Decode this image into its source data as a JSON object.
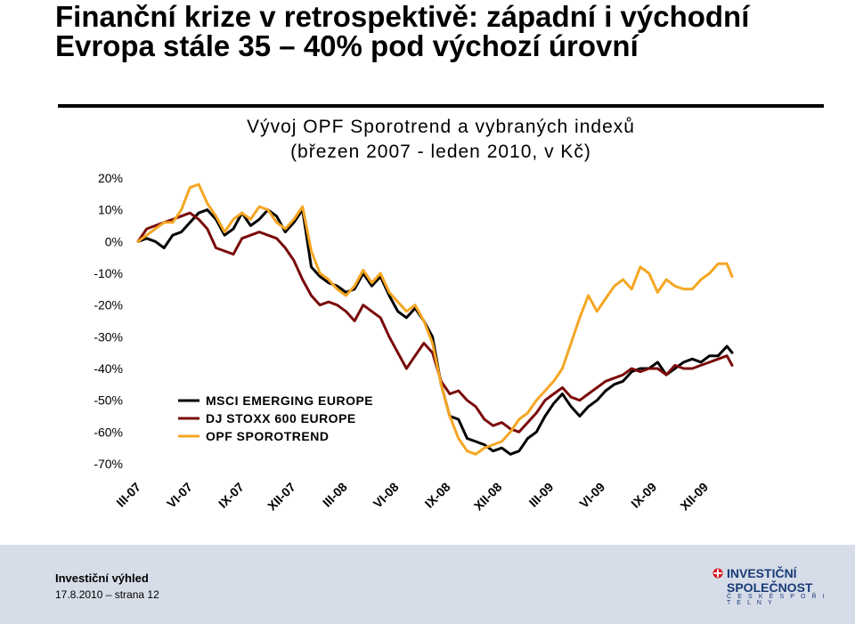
{
  "slide": {
    "title": "Finanční krize v retrospektivě: západní i východní Evropa stále 35 – 40% pod výchozí úrovní"
  },
  "chart_data": {
    "type": "line",
    "title": "Vývoj OPF Sporotrend a vybraných indexů",
    "subtitle": "(březen 2007 - leden 2010, v Kč)",
    "xlabel": "",
    "ylabel": "",
    "ylim": [
      -70,
      20
    ],
    "ytick_labels": [
      "20%",
      "10%",
      "0%",
      "-10%",
      "-20%",
      "-30%",
      "-40%",
      "-50%",
      "-60%",
      "-70%"
    ],
    "ytick_values": [
      20,
      10,
      0,
      -10,
      -20,
      -30,
      -40,
      -50,
      -60,
      -70
    ],
    "xtick_labels": [
      "III-07",
      "VI-07",
      "IX-07",
      "XII-07",
      "III-08",
      "VI-08",
      "IX-08",
      "XII-08",
      "III-09",
      "VI-09",
      "IX-09",
      "XII-09"
    ],
    "xlim": [
      0,
      34.3
    ],
    "grid": false,
    "legend_placement": "bottom-left",
    "series": [
      {
        "name": "MSCI EMERGING EUROPE",
        "color": "#000000",
        "x": [
          0,
          0.5,
          1,
          1.5,
          2,
          2.5,
          3,
          3.5,
          4,
          4.5,
          5,
          5.5,
          6,
          6.5,
          7,
          7.5,
          8,
          8.5,
          9,
          9.5,
          10,
          10.5,
          11,
          11.5,
          12,
          12.5,
          13,
          13.5,
          14,
          14.5,
          15,
          15.5,
          16,
          16.5,
          17,
          17.5,
          18,
          18.5,
          19,
          19.5,
          20,
          20.5,
          21,
          21.5,
          22,
          22.5,
          23,
          23.5,
          24,
          24.5,
          25,
          25.5,
          26,
          26.5,
          27,
          27.5,
          28,
          28.5,
          29,
          29.5,
          30,
          30.5,
          31,
          31.5,
          32,
          32.5,
          33,
          33.5,
          34,
          34.3
        ],
        "values": [
          0,
          1,
          0,
          -2,
          2,
          3,
          6,
          9,
          10,
          7,
          2,
          4,
          9,
          5,
          7,
          10,
          8,
          3,
          6,
          10,
          -8,
          -11,
          -13,
          -14,
          -16,
          -15,
          -10,
          -14,
          -11,
          -17,
          -22,
          -24,
          -21,
          -25,
          -30,
          -45,
          -55,
          -56,
          -62,
          -63,
          -64,
          -66,
          -65,
          -67,
          -66,
          -62,
          -60,
          -55,
          -51,
          -48,
          -52,
          -55,
          -52,
          -50,
          -47,
          -45,
          -44,
          -41,
          -40,
          -40,
          -38,
          -42,
          -40,
          -38,
          -37,
          -38,
          -36,
          -36,
          -33,
          -35
        ]
      },
      {
        "name": "DJ STOXX 600 EUROPE",
        "color": "#7a0a0a",
        "x": [
          0,
          0.5,
          1,
          1.5,
          2,
          2.5,
          3,
          3.5,
          4,
          4.5,
          5,
          5.5,
          6,
          6.5,
          7,
          7.5,
          8,
          8.5,
          9,
          9.5,
          10,
          10.5,
          11,
          11.5,
          12,
          12.5,
          13,
          13.5,
          14,
          14.5,
          15,
          15.5,
          16,
          16.5,
          17,
          17.5,
          18,
          18.5,
          19,
          19.5,
          20,
          20.5,
          21,
          21.5,
          22,
          22.5,
          23,
          23.5,
          24,
          24.5,
          25,
          25.5,
          26,
          26.5,
          27,
          27.5,
          28,
          28.5,
          29,
          29.5,
          30,
          30.5,
          31,
          31.5,
          32,
          32.5,
          33,
          33.5,
          34,
          34.3
        ],
        "values": [
          0,
          4,
          5,
          6,
          7,
          8,
          9,
          7,
          4,
          -2,
          -3,
          -4,
          1,
          2,
          3,
          2,
          1,
          -2,
          -6,
          -12,
          -17,
          -20,
          -19,
          -20,
          -22,
          -25,
          -20,
          -22,
          -24,
          -30,
          -35,
          -40,
          -36,
          -32,
          -35,
          -44,
          -48,
          -47,
          -50,
          -52,
          -56,
          -58,
          -57,
          -59,
          -60,
          -57,
          -54,
          -50,
          -48,
          -46,
          -49,
          -50,
          -48,
          -46,
          -44,
          -43,
          -42,
          -40,
          -41,
          -40,
          -40,
          -42,
          -39,
          -40,
          -40,
          -39,
          -38,
          -37,
          -36,
          -39
        ]
      },
      {
        "name": "OPF SPOROTREND",
        "color": "#f5a623",
        "x": [
          0,
          0.5,
          1,
          1.5,
          2,
          2.5,
          3,
          3.5,
          4,
          4.5,
          5,
          5.5,
          6,
          6.5,
          7,
          7.5,
          8,
          8.5,
          9,
          9.5,
          10,
          10.5,
          11,
          11.5,
          12,
          12.5,
          13,
          13.5,
          14,
          14.5,
          15,
          15.5,
          16,
          16.5,
          17,
          17.5,
          18,
          18.5,
          19,
          19.5,
          20,
          20.5,
          21,
          21.5,
          22,
          22.5,
          23,
          23.5,
          24,
          24.5,
          25,
          25.5,
          26,
          26.5,
          27,
          27.5,
          28,
          28.5,
          29,
          29.5,
          30,
          30.5,
          31,
          31.5,
          32,
          32.5,
          33,
          33.5,
          34,
          34.3
        ],
        "values": [
          0,
          2,
          4,
          6,
          6,
          10,
          17,
          18,
          12,
          8,
          3,
          7,
          9,
          7,
          11,
          10,
          6,
          4,
          7,
          11,
          -3,
          -10,
          -12,
          -15,
          -17,
          -14,
          -9,
          -13,
          -10,
          -16,
          -19,
          -22,
          -20,
          -25,
          -32,
          -45,
          -55,
          -62,
          -66,
          -67,
          -65,
          -64,
          -63,
          -60,
          -56,
          -54,
          -50,
          -47,
          -44,
          -40,
          -32,
          -24,
          -17,
          -22,
          -18,
          -14,
          -12,
          -15,
          -8,
          -10,
          -16,
          -12,
          -14,
          -15,
          -15,
          -12,
          -10,
          -7,
          -7,
          -11
        ]
      }
    ]
  },
  "footer": {
    "title": "Investiční výhled",
    "date_page": "17.8.2010 – strana 12"
  },
  "logo": {
    "line1": "INVESTIČNÍ",
    "line2": "SPOLEČNOST",
    "line3": "Č E S K É  S P O Ř I T E L N Y",
    "color": "#1a3a78",
    "accent": "#d9141c"
  }
}
